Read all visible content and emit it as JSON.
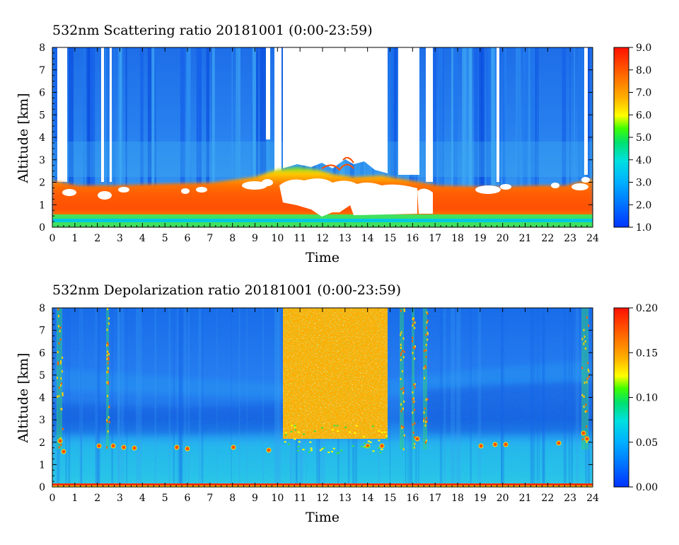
{
  "chart_data": [
    {
      "type": "heatmap",
      "title": "532nm Scattering ratio  20181001 (0:00-23:59)",
      "xlabel": "Time",
      "ylabel": "Altitude [km]",
      "xlim": [
        0,
        24
      ],
      "ylim": [
        0,
        8
      ],
      "x_ticks": [
        "0",
        "1",
        "2",
        "3",
        "4",
        "5",
        "6",
        "7",
        "8",
        "9",
        "10",
        "11",
        "12",
        "13",
        "14",
        "15",
        "16",
        "17",
        "18",
        "19",
        "20",
        "21",
        "22",
        "23",
        "24"
      ],
      "y_ticks": [
        "0",
        "1",
        "2",
        "3",
        "4",
        "5",
        "6",
        "7",
        "8"
      ],
      "colorbar": {
        "range": [
          1.0,
          9.0
        ],
        "ticks": [
          "1.0",
          "2.0",
          "3.0",
          "4.0",
          "5.0",
          "6.0",
          "7.0",
          "8.0",
          "9.0"
        ]
      },
      "description_values": {
        "surface_layer_km": [
          0.2,
          0.5
        ],
        "boundary_layer_top_km": 2.0,
        "cloud_free_gap_hours": [
          10.2,
          15.0
        ]
      }
    },
    {
      "type": "heatmap",
      "title": "532nm Depolarization ratio  20181001 (0:00-23:59)",
      "xlabel": "Time",
      "ylabel": "Altitude [km]",
      "xlim": [
        0,
        24
      ],
      "ylim": [
        0,
        8
      ],
      "x_ticks": [
        "0",
        "1",
        "2",
        "3",
        "4",
        "5",
        "6",
        "7",
        "8",
        "9",
        "10",
        "11",
        "12",
        "13",
        "14",
        "15",
        "16",
        "17",
        "18",
        "19",
        "20",
        "21",
        "22",
        "23",
        "24"
      ],
      "y_ticks": [
        "0",
        "1",
        "2",
        "3",
        "4",
        "5",
        "6",
        "7",
        "8"
      ],
      "colorbar": {
        "range": [
          0.0,
          0.2
        ],
        "ticks": [
          "0.00",
          "0.05",
          "0.10",
          "0.15",
          "0.20"
        ]
      }
    }
  ],
  "colors": {
    "jet_stops": [
      "#0033ff",
      "#0070ff",
      "#00b0ff",
      "#00e0e0",
      "#00e070",
      "#40ff00",
      "#ffff00",
      "#ffb000",
      "#ff6000",
      "#ff1000"
    ]
  }
}
